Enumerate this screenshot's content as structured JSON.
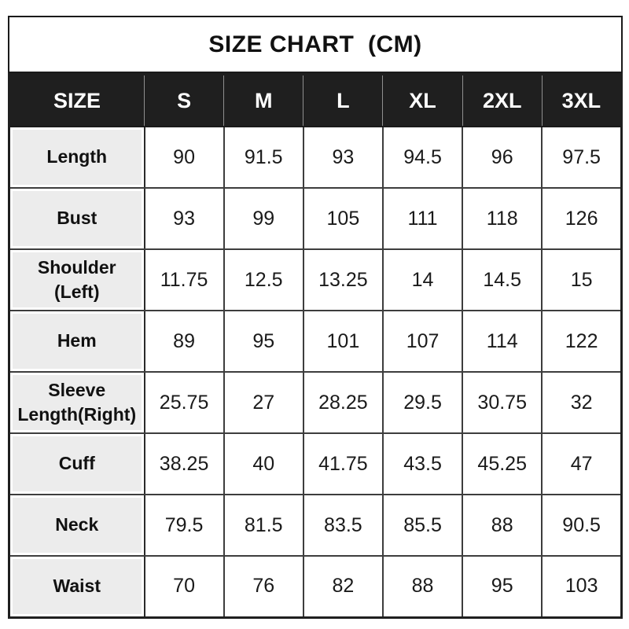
{
  "title": "SIZE CHART  (CM)",
  "chart_data": {
    "type": "table",
    "title": "SIZE CHART (CM)",
    "unit": "cm",
    "columns": [
      "SIZE",
      "S",
      "M",
      "L",
      "XL",
      "2XL",
      "3XL"
    ],
    "rows": [
      {
        "label": "Length",
        "display_label": "Length",
        "values": [
          90,
          91.5,
          93,
          94.5,
          96,
          97.5
        ]
      },
      {
        "label": "Bust",
        "display_label": "Bust",
        "values": [
          93,
          99,
          105,
          111,
          118,
          126
        ]
      },
      {
        "label": "Shoulder (Left)",
        "display_label": "Shoulder\n(Left)",
        "values": [
          11.75,
          12.5,
          13.25,
          14,
          14.5,
          15
        ]
      },
      {
        "label": "Hem",
        "display_label": "Hem",
        "values": [
          89,
          95,
          101,
          107,
          114,
          122
        ]
      },
      {
        "label": "Sleeve Length(Right)",
        "display_label": "Sleeve\nLength(Right)",
        "values": [
          25.75,
          27,
          28.25,
          29.5,
          30.75,
          32
        ]
      },
      {
        "label": "Cuff",
        "display_label": "Cuff",
        "values": [
          38.25,
          40,
          41.75,
          43.5,
          45.25,
          47
        ]
      },
      {
        "label": "Neck",
        "display_label": "Neck",
        "values": [
          79.5,
          81.5,
          83.5,
          85.5,
          88,
          90.5
        ]
      },
      {
        "label": "Waist",
        "display_label": "Waist",
        "values": [
          70,
          76,
          82,
          88,
          95,
          103
        ]
      }
    ]
  },
  "colors": {
    "header_bg": "#1f1f1f",
    "header_text": "#ffffff",
    "label_bg": "#ececec",
    "outer_border": "#1f1f1f",
    "inner_border": "#3d3d3d",
    "text": "#1a1a1a"
  }
}
